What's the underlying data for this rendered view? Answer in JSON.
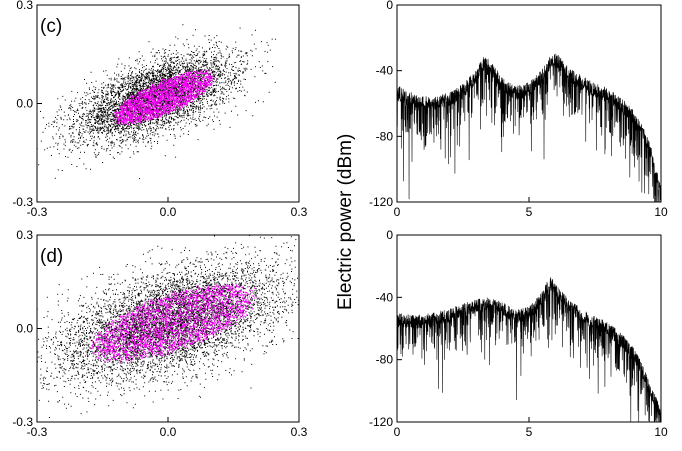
{
  "colors": {
    "noise": "#000000",
    "attractor": "#ff00ff",
    "spectrum": "#000000",
    "background": "#ffffff"
  },
  "ylabel": "Electric power  (dBm)",
  "chart_data": [
    {
      "type": "scatter",
      "panel_label": "(c)",
      "xlim": [
        -0.3,
        0.3
      ],
      "ylim": [
        -0.3,
        0.3
      ],
      "x_ticks": [
        -0.3,
        0.0,
        0.3
      ],
      "x_tick_labels": [
        "-0.3",
        "0.0",
        "0.3"
      ],
      "y_ticks": [
        -0.3,
        0.0,
        0.3
      ],
      "y_tick_labels": [
        "-0.3",
        "0.0",
        "0.3"
      ],
      "grid": false,
      "series": [
        {
          "color": "#000000",
          "center": [
            -0.03,
            0.02
          ],
          "semi_axes": [
            0.2,
            0.085
          ],
          "tilt_deg": 30,
          "points": 5200
        },
        {
          "color": "#ff00ff",
          "center": [
            -0.01,
            0.02
          ],
          "semi_axes": [
            0.14,
            0.05
          ],
          "tilt_deg": 32,
          "points": 2600
        }
      ]
    },
    {
      "type": "line",
      "xlim": [
        0,
        10
      ],
      "ylim": [
        -120,
        0
      ],
      "x_ticks": [
        0,
        5,
        10
      ],
      "x_tick_labels": [
        "0",
        "5",
        "10"
      ],
      "y_ticks": [
        0,
        -40,
        -80,
        -120
      ],
      "y_tick_labels": [
        "0",
        "-40",
        "-80",
        "-120"
      ],
      "grid": false,
      "envelope": {
        "x": [
          0,
          0.5,
          1,
          1.5,
          2,
          2.5,
          3,
          3.3,
          3.5,
          4,
          4.5,
          5,
          5.5,
          5.8,
          6,
          6.2,
          6.5,
          7,
          7.5,
          8,
          8.5,
          9,
          9.3,
          9.6,
          10
        ],
        "y": [
          -56,
          -60,
          -62,
          -62,
          -60,
          -55,
          -46,
          -38,
          -40,
          -51,
          -56,
          -54,
          -46,
          -38,
          -35,
          -39,
          -45,
          -50,
          -54,
          -58,
          -63,
          -72,
          -80,
          -92,
          -118
        ]
      }
    },
    {
      "type": "scatter",
      "panel_label": "(d)",
      "xlim": [
        -0.3,
        0.3
      ],
      "ylim": [
        -0.3,
        0.3
      ],
      "x_ticks": [
        -0.3,
        0.0,
        0.3
      ],
      "x_tick_labels": [
        "-0.3",
        "0.0",
        "0.3"
      ],
      "y_ticks": [
        -0.3,
        0.0,
        0.3
      ],
      "y_tick_labels": [
        "-0.3",
        "0.0",
        "0.3"
      ],
      "grid": false,
      "series": [
        {
          "color": "#000000",
          "center": [
            0.0,
            0.02
          ],
          "semi_axes": [
            0.29,
            0.13
          ],
          "tilt_deg": 28,
          "points": 6500
        },
        {
          "color": "#ff00ff",
          "center": [
            0.01,
            0.02
          ],
          "semi_axes": [
            0.22,
            0.09
          ],
          "tilt_deg": 28,
          "points": 3000
        }
      ]
    },
    {
      "type": "line",
      "xlim": [
        0,
        10
      ],
      "ylim": [
        -120,
        0
      ],
      "x_ticks": [
        0,
        5,
        10
      ],
      "x_tick_labels": [
        "0",
        "5",
        "10"
      ],
      "y_ticks": [
        0,
        -40,
        -80,
        -120
      ],
      "y_tick_labels": [
        "0",
        "-40",
        "-80",
        "-120"
      ],
      "grid": false,
      "envelope": {
        "x": [
          0,
          0.5,
          1,
          1.5,
          2,
          2.5,
          3,
          3.5,
          4,
          4.5,
          5,
          5.5,
          5.8,
          6,
          6.5,
          7,
          7.5,
          8,
          8.5,
          9,
          9.3,
          9.6,
          10
        ],
        "y": [
          -57,
          -58,
          -58,
          -56,
          -54,
          -51,
          -48,
          -47,
          -50,
          -55,
          -53,
          -43,
          -33,
          -38,
          -48,
          -54,
          -59,
          -63,
          -70,
          -80,
          -90,
          -103,
          -118
        ]
      }
    }
  ]
}
